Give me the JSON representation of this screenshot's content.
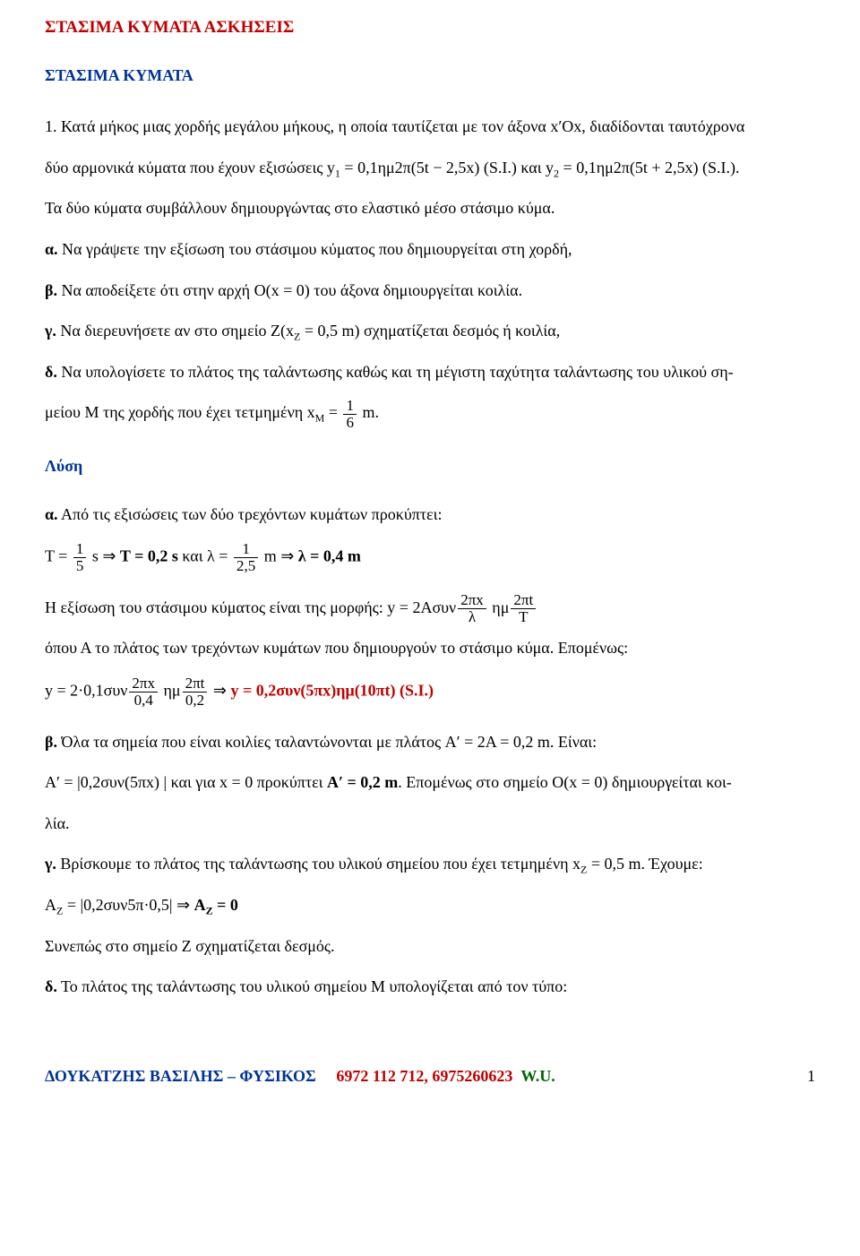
{
  "header": "ΣΤΑΣΙΜΑ ΚΥΜΑΤΑ ΑΣΚΗΣΕΙΣ",
  "title": "ΣΤΑΣΙΜΑ ΚΥΜΑΤΑ",
  "p1a": "1. Κατά μήκος μιας χορδής μεγάλου μήκους, η οποία ταυτίζεται με τον άξονα x′Ox, διαδίδονται ταυτόχρονα",
  "p1b": "δύο αρμονικά κύματα που έχουν εξισώσεις y",
  "p1b_sub1": "1",
  "p1b_mid": " = 0,1ημ2π(5t − 2,5x) (S.I.) και y",
  "p1b_sub2": "2",
  "p1b_end": " = 0,1ημ2π(5t + 2,5x) (S.I.).",
  "p1c": "Τα δύο κύματα συμβάλλουν δημιουργώντας στο ελαστικό μέσο στάσιμο κύμα.",
  "qa_b": "α.",
  "qa_t": " Να γράψετε την εξίσωση του στάσιμου κύματος που δημιουργείται στη χορδή,",
  "qb_b": "β.",
  "qb_t": " Να αποδείξετε ότι στην αρχή O(x = 0) του άξονα  δημιουργείται κοιλία.",
  "qc_b": "γ.",
  "qc_t1": " Να διερευνήσετε αν στο σημείο Ζ(x",
  "qc_sub": "Z",
  "qc_t2": " = 0,5 m) σχηματίζεται δεσμός ή κοιλία,",
  "qd_b": "δ.",
  "qd_t1": " Να υπολογίσετε το πλάτος της ταλάντωσης καθώς και τη μέγιστη ταχύτητα ταλάντωσης του υλικού ση-",
  "qd_t2a": "μείου Μ της χορδής που έχει τετμημένη x",
  "qd_subM": "M",
  "qd_t2b": " = ",
  "qd_num": "1",
  "qd_den": "6",
  "qd_t2c": " m.",
  "sol": "Λύση",
  "sa_b": "α.",
  "sa_t": " Από τις εξισώσεις των δύο τρεχόντων κυμάτων προκύπτει:",
  "eT_pre": "T = ",
  "eT_num": "1",
  "eT_den": "5",
  "eT_post": " s  ⇒  ",
  "eT_res": "T = 0,2 s",
  "eT_and": "  και  λ = ",
  "eL_num": "1",
  "eL_den": "2,5",
  "eL_post": " m  ⇒  ",
  "eL_res": "λ = 0,4 m",
  "s_line2a": "Η εξίσωση του στάσιμου κύματος είναι της μορφής:  y = 2Ασυν",
  "f2x_num": "2πx",
  "f2x_den": "λ",
  "s_line2m": " ημ",
  "f2t_num": "2πt",
  "f2t_den": "T",
  "s_line3": "όπου Α το πλάτος των τρεχόντων κυμάτων που δημιουργούν το στάσιμο κύμα. Επομένως:",
  "e3_pre": "y = 2·0,1συν",
  "e3a_num": "2πx",
  "e3a_den": "0,4",
  "e3_mid": " ημ",
  "e3b_num": "2πt",
  "e3b_den": "0,2",
  "e3_arrow": "  ⇒  ",
  "e3_res": "y = 0,2συν(5πx)ημ(10πt)  (S.I.)",
  "sb_b": "β.",
  "sb_t": " Όλα τα σημεία που είναι κοιλίες ταλαντώνονται με πλάτος A′ = 2A = 0,2 m. Είναι:",
  "sb2a": "A′ = |0,2συν(5πx) | και για x = 0 προκύπτει  ",
  "sb2res": "A′ = 0,2 m",
  "sb2b": ". Επομένως στο σημείο Ο(x = 0) δημιουργείται κοι-",
  "sb3": "λία.",
  "sc_b": "γ.",
  "sc_t1": " Βρίσκουμε το πλάτος της ταλάντωσης του υλικού σημείου που έχει τετμημένη x",
  "sc_sub": "Z",
  "sc_t2": " = 0,5 m. Έχουμε:",
  "sc_eq1": "A",
  "sc_eq1sub": "Z",
  "sc_eq1m": " = |0,2συν5π·0,5| ⇒ ",
  "sc_eqres1": "A",
  "sc_eqressub": "Z",
  "sc_eqres2": " = 0",
  "sc_conc": "Συνεπώς στο σημείο Ζ σχηματίζεται δεσμός.",
  "sd_b": "δ.",
  "sd_t": " Το πλάτος της ταλάντωσης του υλικού σημείου Μ υπολογίζεται από τον τύπο:",
  "footer_name": "ΔΟΥΚΑΤΖΗΣ ΒΑΣΙΛΗΣ – ΦΥΣΙΚΟΣ",
  "footer_phone": "6972 112 712,   6975260623",
  "footer_wu": "W.U.",
  "pgnum": "1"
}
